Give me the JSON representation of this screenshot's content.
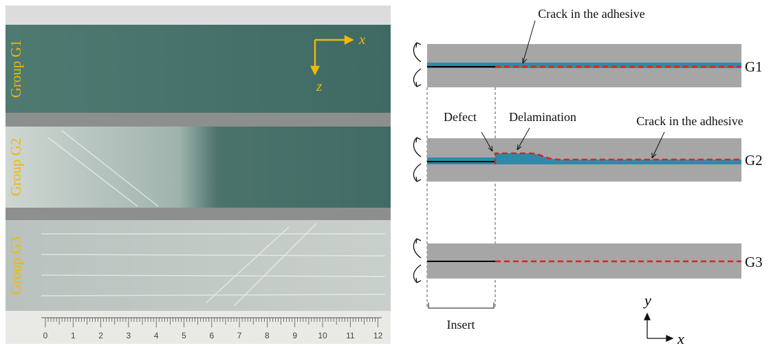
{
  "photo": {
    "groups": [
      "Group G1",
      "Group G2",
      "Group G3"
    ],
    "axes": {
      "x": "x",
      "z": "z"
    },
    "ruler": [
      "0",
      "1",
      "2",
      "3",
      "4",
      "5",
      "6",
      "7",
      "8",
      "9",
      "10",
      "11",
      "12"
    ]
  },
  "diagram": {
    "specimens": [
      {
        "label": "G1",
        "annotation": "Crack in the adhesive"
      },
      {
        "label": "G2",
        "defect": "Defect",
        "delamination": "Delamination",
        "annotation": "Crack in the adhesive"
      },
      {
        "label": "G3"
      }
    ],
    "insert": "Insert",
    "axes": {
      "y": "y",
      "x": "x"
    }
  }
}
